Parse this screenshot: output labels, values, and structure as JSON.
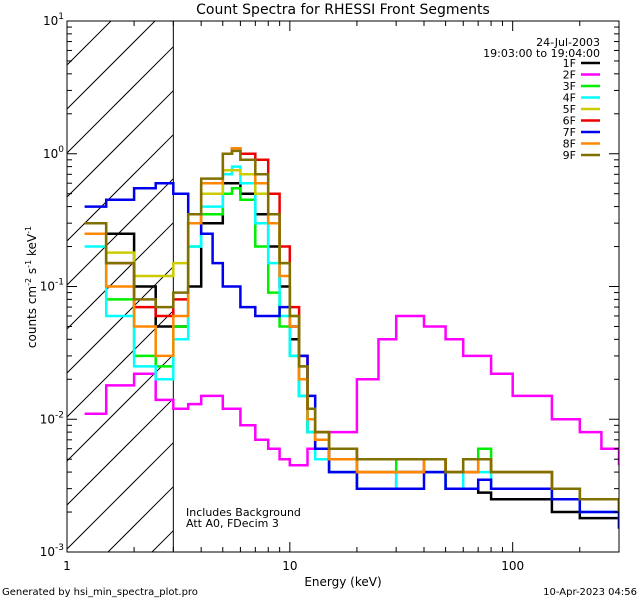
{
  "chart_data": {
    "type": "line",
    "title": "Count Spectra for RHESSI Front Segments",
    "xlabel": "Energy (keV)",
    "ylabel_parts": {
      "base": "counts cm",
      "exp1": "-2",
      "mid": " s",
      "exp2": "-1",
      "end": " keV",
      "exp3": "-1"
    },
    "x_scale": "log",
    "y_scale": "log",
    "xlim": [
      1,
      300
    ],
    "ylim": [
      0.001,
      10
    ],
    "x_ticks": [
      {
        "value": 1,
        "label": "1"
      },
      {
        "value": 10,
        "label": "10"
      },
      {
        "value": 100,
        "label": "100"
      }
    ],
    "y_ticks": [
      {
        "value": 0.001,
        "base": "10",
        "exp": "-3"
      },
      {
        "value": 0.01,
        "base": "10",
        "exp": "-2"
      },
      {
        "value": 0.1,
        "base": "10",
        "exp": "-1"
      },
      {
        "value": 1,
        "base": "10",
        "exp": "0"
      },
      {
        "value": 10,
        "base": "10",
        "exp": "1"
      }
    ],
    "hatched_region_keV": [
      1,
      3
    ],
    "date": "24-Jul-2003",
    "time_range": "19:03:00 to 19:04:00",
    "annotation_lines": [
      "Includes Background",
      "Att A0, FDecim 3"
    ],
    "series": [
      {
        "name": "1F",
        "color": "#000000",
        "x": [
          1.5,
          2,
          2.5,
          3,
          3.5,
          4,
          5,
          5.5,
          6,
          7,
          8,
          9,
          10,
          11,
          12,
          13,
          15,
          20,
          30,
          40,
          50,
          60,
          70,
          80,
          100,
          150,
          200,
          300
        ],
        "y": [
          0.25,
          0.1,
          0.05,
          0.05,
          0.1,
          0.3,
          0.6,
          0.6,
          0.5,
          0.35,
          0.2,
          0.1,
          0.04,
          0.015,
          0.008,
          0.006,
          0.004,
          0.003,
          0.004,
          0.004,
          0.003,
          0.003,
          0.0028,
          0.0025,
          0.0025,
          0.002,
          0.0018,
          0.0015
        ]
      },
      {
        "name": "2F",
        "color": "#ff00ff",
        "x": [
          1.2,
          1.5,
          2,
          2.5,
          3,
          3.5,
          4,
          5,
          6,
          7,
          8,
          9,
          10,
          12,
          15,
          20,
          25,
          30,
          40,
          50,
          60,
          70,
          80,
          100,
          150,
          200,
          250,
          300
        ],
        "y": [
          0.011,
          0.018,
          0.022,
          0.014,
          0.012,
          0.013,
          0.015,
          0.012,
          0.009,
          0.007,
          0.006,
          0.005,
          0.0045,
          0.006,
          0.008,
          0.02,
          0.04,
          0.06,
          0.05,
          0.04,
          0.03,
          0.03,
          0.022,
          0.015,
          0.01,
          0.008,
          0.006,
          0.0045
        ]
      },
      {
        "name": "3F",
        "color": "#00ee00",
        "x": [
          1.2,
          1.5,
          2,
          2.5,
          3,
          3.5,
          4,
          5,
          5.5,
          6,
          7,
          8,
          9,
          10,
          11,
          12,
          13,
          15,
          20,
          30,
          40,
          50,
          60,
          70,
          80,
          100,
          150,
          200,
          300
        ],
        "y": [
          0.25,
          0.08,
          0.03,
          0.025,
          0.05,
          0.2,
          0.35,
          0.5,
          0.55,
          0.45,
          0.2,
          0.09,
          0.05,
          0.03,
          0.015,
          0.008,
          0.006,
          0.005,
          0.004,
          0.005,
          0.005,
          0.004,
          0.005,
          0.006,
          0.004,
          0.004,
          0.003,
          0.0025,
          0.002
        ]
      },
      {
        "name": "4F",
        "color": "#00ffff",
        "x": [
          1.2,
          1.5,
          2,
          2.5,
          3,
          3.5,
          4,
          5,
          5.5,
          6,
          7,
          8,
          9,
          10,
          11,
          12,
          13,
          15,
          20,
          30,
          40,
          50,
          60,
          70,
          80,
          100,
          150,
          200,
          300
        ],
        "y": [
          0.2,
          0.06,
          0.025,
          0.02,
          0.04,
          0.2,
          0.4,
          0.7,
          0.8,
          0.6,
          0.3,
          0.15,
          0.06,
          0.03,
          0.015,
          0.008,
          0.005,
          0.004,
          0.003,
          0.004,
          0.004,
          0.003,
          0.004,
          0.004,
          0.003,
          0.003,
          0.0025,
          0.002,
          0.0015
        ]
      },
      {
        "name": "5F",
        "color": "#cccc00",
        "x": [
          1.2,
          1.5,
          2,
          2.5,
          3,
          3.5,
          4,
          5,
          5.5,
          6,
          7,
          8,
          9,
          10,
          11,
          12,
          13,
          15,
          20,
          30,
          40,
          50,
          60,
          70,
          80,
          100,
          150,
          200,
          300
        ],
        "y": [
          0.25,
          0.18,
          0.12,
          0.12,
          0.15,
          0.3,
          0.5,
          0.75,
          0.75,
          0.7,
          0.5,
          0.3,
          0.15,
          0.06,
          0.025,
          0.012,
          0.008,
          0.006,
          0.005,
          0.005,
          0.005,
          0.004,
          0.005,
          0.005,
          0.004,
          0.004,
          0.003,
          0.0025,
          0.002
        ]
      },
      {
        "name": "6F",
        "color": "#ee0000",
        "x": [
          1.2,
          1.5,
          2,
          2.5,
          3,
          3.5,
          4,
          5,
          5.5,
          6,
          7,
          8,
          9,
          10,
          11,
          12,
          13,
          15,
          20,
          30,
          40,
          50,
          60,
          70,
          80,
          100,
          150,
          200,
          300
        ],
        "y": [
          0.3,
          0.15,
          0.07,
          0.06,
          0.08,
          0.3,
          0.6,
          1,
          1.1,
          1,
          0.9,
          0.5,
          0.2,
          0.07,
          0.03,
          0.012,
          0.008,
          0.006,
          0.004,
          0.004,
          0.005,
          0.004,
          0.004,
          0.005,
          0.004,
          0.004,
          0.003,
          0.0025,
          0.002
        ]
      },
      {
        "name": "7F",
        "color": "#0000ee",
        "x": [
          1.2,
          1.5,
          2,
          2.5,
          3,
          3.5,
          4,
          4.5,
          5,
          6,
          7,
          8,
          9,
          10,
          11,
          12,
          13,
          15,
          20,
          30,
          40,
          50,
          60,
          70,
          80,
          100,
          150,
          200,
          300
        ],
        "y": [
          0.4,
          0.45,
          0.55,
          0.6,
          0.5,
          0.35,
          0.25,
          0.15,
          0.1,
          0.07,
          0.06,
          0.06,
          0.07,
          0.05,
          0.03,
          0.015,
          0.006,
          0.004,
          0.003,
          0.003,
          0.004,
          0.003,
          0.003,
          0.0035,
          0.003,
          0.003,
          0.0025,
          0.002,
          0.0015
        ]
      },
      {
        "name": "8F",
        "color": "#ff8800",
        "x": [
          1.2,
          1.5,
          2,
          2.5,
          3,
          3.5,
          4,
          5,
          5.5,
          6,
          7,
          8,
          9,
          10,
          11,
          12,
          13,
          15,
          20,
          30,
          40,
          50,
          60,
          70,
          80,
          100,
          150,
          200,
          300
        ],
        "y": [
          0.25,
          0.1,
          0.05,
          0.03,
          0.06,
          0.3,
          0.6,
          1,
          1.1,
          0.9,
          0.6,
          0.3,
          0.12,
          0.05,
          0.02,
          0.01,
          0.007,
          0.005,
          0.004,
          0.004,
          0.005,
          0.004,
          0.004,
          0.005,
          0.004,
          0.004,
          0.003,
          0.0025,
          0.002
        ]
      },
      {
        "name": "9F",
        "color": "#807000",
        "x": [
          1.2,
          1.5,
          2,
          2.5,
          3,
          3.5,
          4,
          5,
          5.5,
          6,
          7,
          8,
          9,
          10,
          11,
          12,
          13,
          15,
          20,
          30,
          40,
          50,
          60,
          70,
          80,
          100,
          150,
          200,
          300
        ],
        "y": [
          0.3,
          0.15,
          0.08,
          0.07,
          0.09,
          0.35,
          0.65,
          1,
          1.05,
          0.9,
          0.7,
          0.35,
          0.15,
          0.06,
          0.025,
          0.012,
          0.008,
          0.006,
          0.005,
          0.005,
          0.005,
          0.004,
          0.005,
          0.005,
          0.004,
          0.004,
          0.003,
          0.0025,
          0.002
        ]
      }
    ]
  },
  "footer": {
    "generated_by": "Generated by hsi_min_spectra_plot.pro",
    "timestamp": "10-Apr-2023 04:56"
  }
}
